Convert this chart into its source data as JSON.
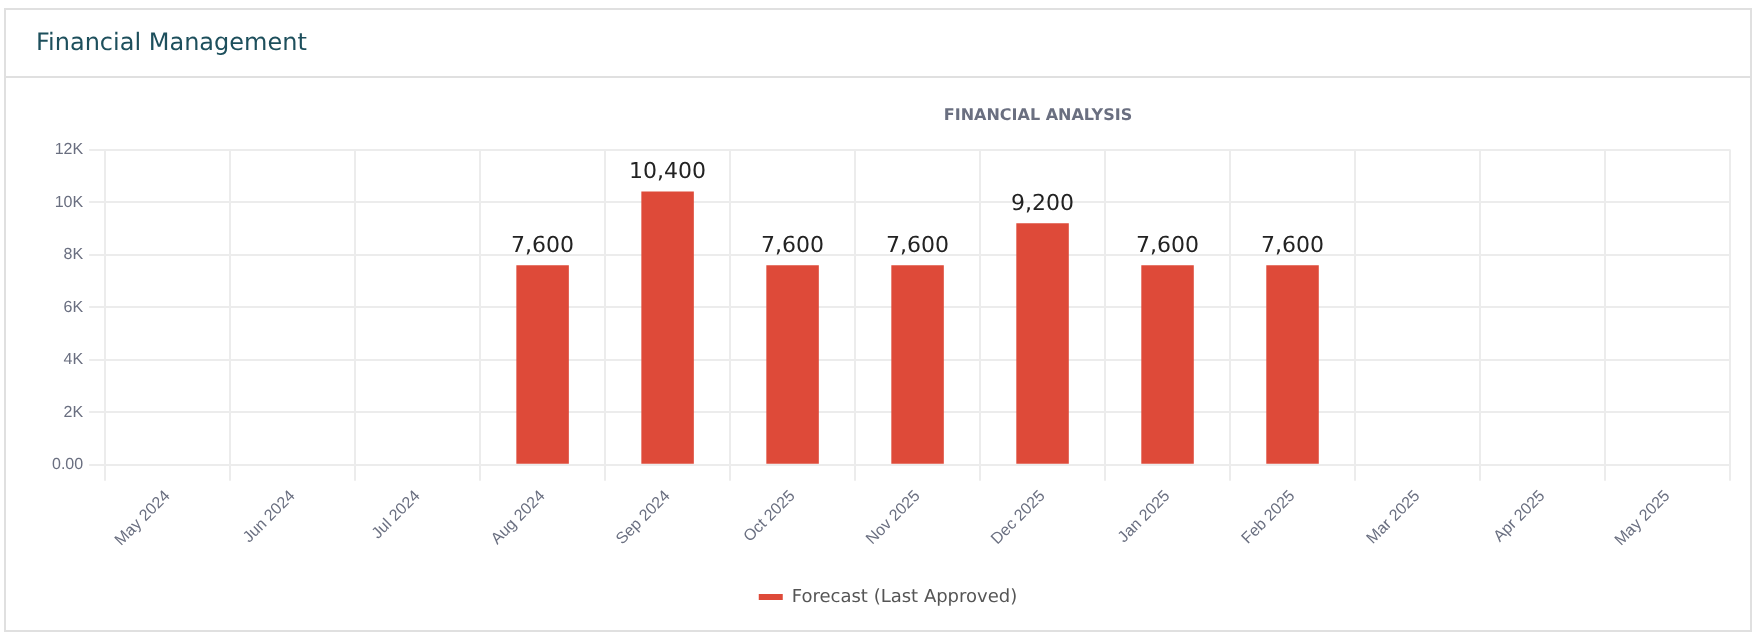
{
  "chart_data": {
    "type": "bar",
    "title": "Financial Management",
    "subtitle": "FINANCIAL ANALYSIS",
    "categories": [
      "May 2024",
      "Jun 2024",
      "Jul 2024",
      "Aug 2024",
      "Sep 2024",
      "Oct 2025",
      "Nov 2025",
      "Dec 2025",
      "Jan 2025",
      "Feb 2025",
      "Mar 2025",
      "Apr 2025",
      "May 2025"
    ],
    "series": [
      {
        "name": "Forecast (Last Approved)",
        "color": "#de4a39",
        "values": [
          null,
          null,
          null,
          7600,
          10400,
          7600,
          7600,
          9200,
          7600,
          7600,
          null,
          null,
          null
        ],
        "value_labels": [
          null,
          null,
          null,
          "7,600",
          "10,400",
          "7,600",
          "7,600",
          "9,200",
          "7,600",
          "7,600",
          null,
          null,
          null
        ]
      }
    ],
    "ylim": [
      0,
      12000
    ],
    "yticks": [
      {
        "value": 0,
        "label": "0.00"
      },
      {
        "value": 2000,
        "label": "2K"
      },
      {
        "value": 4000,
        "label": "4K"
      },
      {
        "value": 6000,
        "label": "6K"
      },
      {
        "value": 8000,
        "label": "8K"
      },
      {
        "value": 10000,
        "label": "10K"
      },
      {
        "value": 12000,
        "label": "12K"
      }
    ],
    "grid": true,
    "legend": "bottom"
  }
}
